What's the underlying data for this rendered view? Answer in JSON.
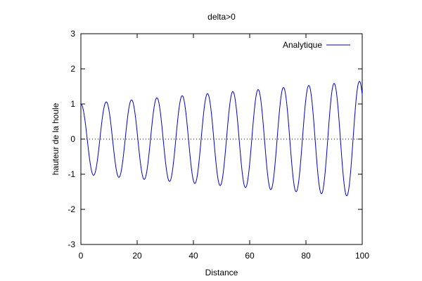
{
  "chart_data": {
    "type": "line",
    "title": "delta>0",
    "xlabel": "Distance",
    "ylabel": "hauteur de la houle",
    "xlim": [
      0,
      100
    ],
    "ylim": [
      -3,
      3
    ],
    "xticks": [
      "0",
      "20",
      "40",
      "60",
      "80",
      "100"
    ],
    "yticks": [
      "-3",
      "-2",
      "-1",
      "0",
      "1",
      "2",
      "3"
    ],
    "grid": false,
    "zero_line": {
      "y": 0,
      "style": "dotted"
    },
    "legend_position": "top-right",
    "series": [
      {
        "name": "Analytique",
        "color": "#0000cc",
        "function": "y = A(x) * cos(2*pi*x/9)",
        "amplitude_start": 1.0,
        "amplitude_end": 1.65,
        "wavelength": 9,
        "x_range": [
          0,
          100
        ]
      }
    ]
  }
}
